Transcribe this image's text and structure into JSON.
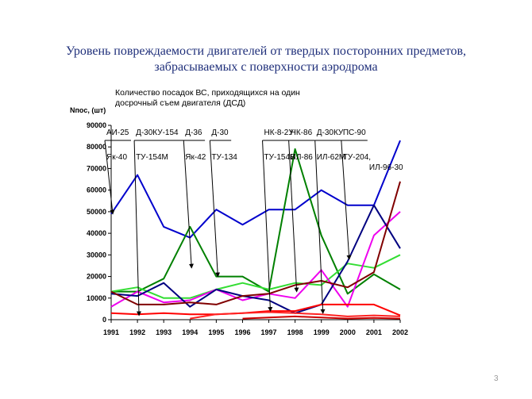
{
  "slide": {
    "title_line1": "Уровень повреждаемости двигателей от твердых посторонних  предметов,",
    "title_line2": "забрасываемых с поверхности аэродрома",
    "subtitle_line1": "Количество посадок ВС, приходящихся на один",
    "subtitle_line2": "досрочный съем двигателя  (ДСД)",
    "page_number": "3"
  },
  "chart_data": {
    "type": "line",
    "ylabel": "Nпос, (шт)",
    "xlabel": "",
    "ylim": [
      0,
      90000
    ],
    "yticks": [
      0,
      10000,
      20000,
      30000,
      40000,
      50000,
      60000,
      70000,
      80000,
      90000
    ],
    "ytick_labels": [
      "0",
      "10000",
      "20000",
      "30000",
      "40000",
      "50000",
      "60000",
      "70000",
      "80000",
      "90000"
    ],
    "x": [
      "1991",
      "1992",
      "1993",
      "1994",
      "1995",
      "1996",
      "1997",
      "1998",
      "1999",
      "2000",
      "2001",
      "2002"
    ],
    "grid": false,
    "legend": "none",
    "series": [
      {
        "color": "#0000cc",
        "values": [
          49000,
          67000,
          43000,
          38000,
          51000,
          44000,
          51000,
          51000,
          60000,
          53000,
          53000,
          83000
        ]
      },
      {
        "color": "#008000",
        "values": [
          13000,
          13000,
          19000,
          43000,
          20000,
          20000,
          13000,
          79000,
          39000,
          12000,
          21000,
          14000
        ]
      },
      {
        "color": "#33dd33",
        "values": [
          13000,
          15000,
          10000,
          10000,
          14000,
          17000,
          14000,
          17000,
          16000,
          26000,
          24000,
          30000
        ]
      },
      {
        "color": "#ee00ee",
        "values": [
          6000,
          13000,
          8000,
          9000,
          14000,
          9000,
          12000,
          10000,
          23000,
          6000,
          39000,
          50000
        ]
      },
      {
        "color": "#000080",
        "values": [
          12000,
          11000,
          17000,
          6000,
          14000,
          11000,
          9000,
          3000,
          7000,
          27000,
          53000,
          33000
        ]
      },
      {
        "color": "#800000",
        "values": [
          13000,
          7000,
          7000,
          8000,
          7000,
          11000,
          12000,
          16000,
          18000,
          15000,
          22000,
          64000
        ]
      },
      {
        "color": "#ff0000",
        "values": [
          3000,
          2500,
          3000,
          2500,
          2500,
          3000,
          4000,
          4000,
          7000,
          7000,
          7000,
          2000
        ]
      },
      {
        "color": "#ff2222",
        "values": [
          null,
          null,
          null,
          500,
          2500,
          3000,
          3500,
          3000,
          2500,
          1500,
          2000,
          1500
        ]
      },
      {
        "color": "#cc0000",
        "values": [
          null,
          null,
          null,
          null,
          null,
          500,
          1000,
          1500,
          1000,
          500,
          800,
          500
        ]
      }
    ],
    "annotations_top": [
      {
        "text": "АИ-25",
        "year": "1991",
        "value": 49000
      },
      {
        "text": "Д-30КУ-154",
        "year": "1992",
        "value": 2000
      },
      {
        "text": "Д-36",
        "year": "1994",
        "value": 24000
      },
      {
        "text": "Д-30",
        "year": "1995",
        "value": 20000
      },
      {
        "text": "НК-8-2У",
        "year": "1997",
        "value": 4000
      },
      {
        "text": "НК-86",
        "year": "1998",
        "value": 13000
      },
      {
        "text": "Д-30КУ",
        "year": "1999",
        "value": 3000
      },
      {
        "text": "ПС-90",
        "year": "2000",
        "value": 28000
      }
    ],
    "annotations_bottom": [
      {
        "text": "Як-40",
        "year": "1991",
        "value": 49000
      },
      {
        "text": "ТУ-154М",
        "year": "1992",
        "value": 2000
      },
      {
        "text": "Як-42",
        "year": "1994",
        "value": 24000
      },
      {
        "text": "ТУ-134",
        "year": "1995",
        "value": 20000
      },
      {
        "text": "ТУ-154Б",
        "year": "1997",
        "value": 4000
      },
      {
        "text": "ИЛ-86",
        "year": "1998",
        "value": 13000
      },
      {
        "text": "ИЛ-62М",
        "year": "1999",
        "value": 3000
      },
      {
        "text": "ТУ-204,",
        "year": "2000",
        "value": 28000
      },
      {
        "text": "ИЛ-96-30",
        "year": "2001",
        "value": 1500
      }
    ]
  }
}
